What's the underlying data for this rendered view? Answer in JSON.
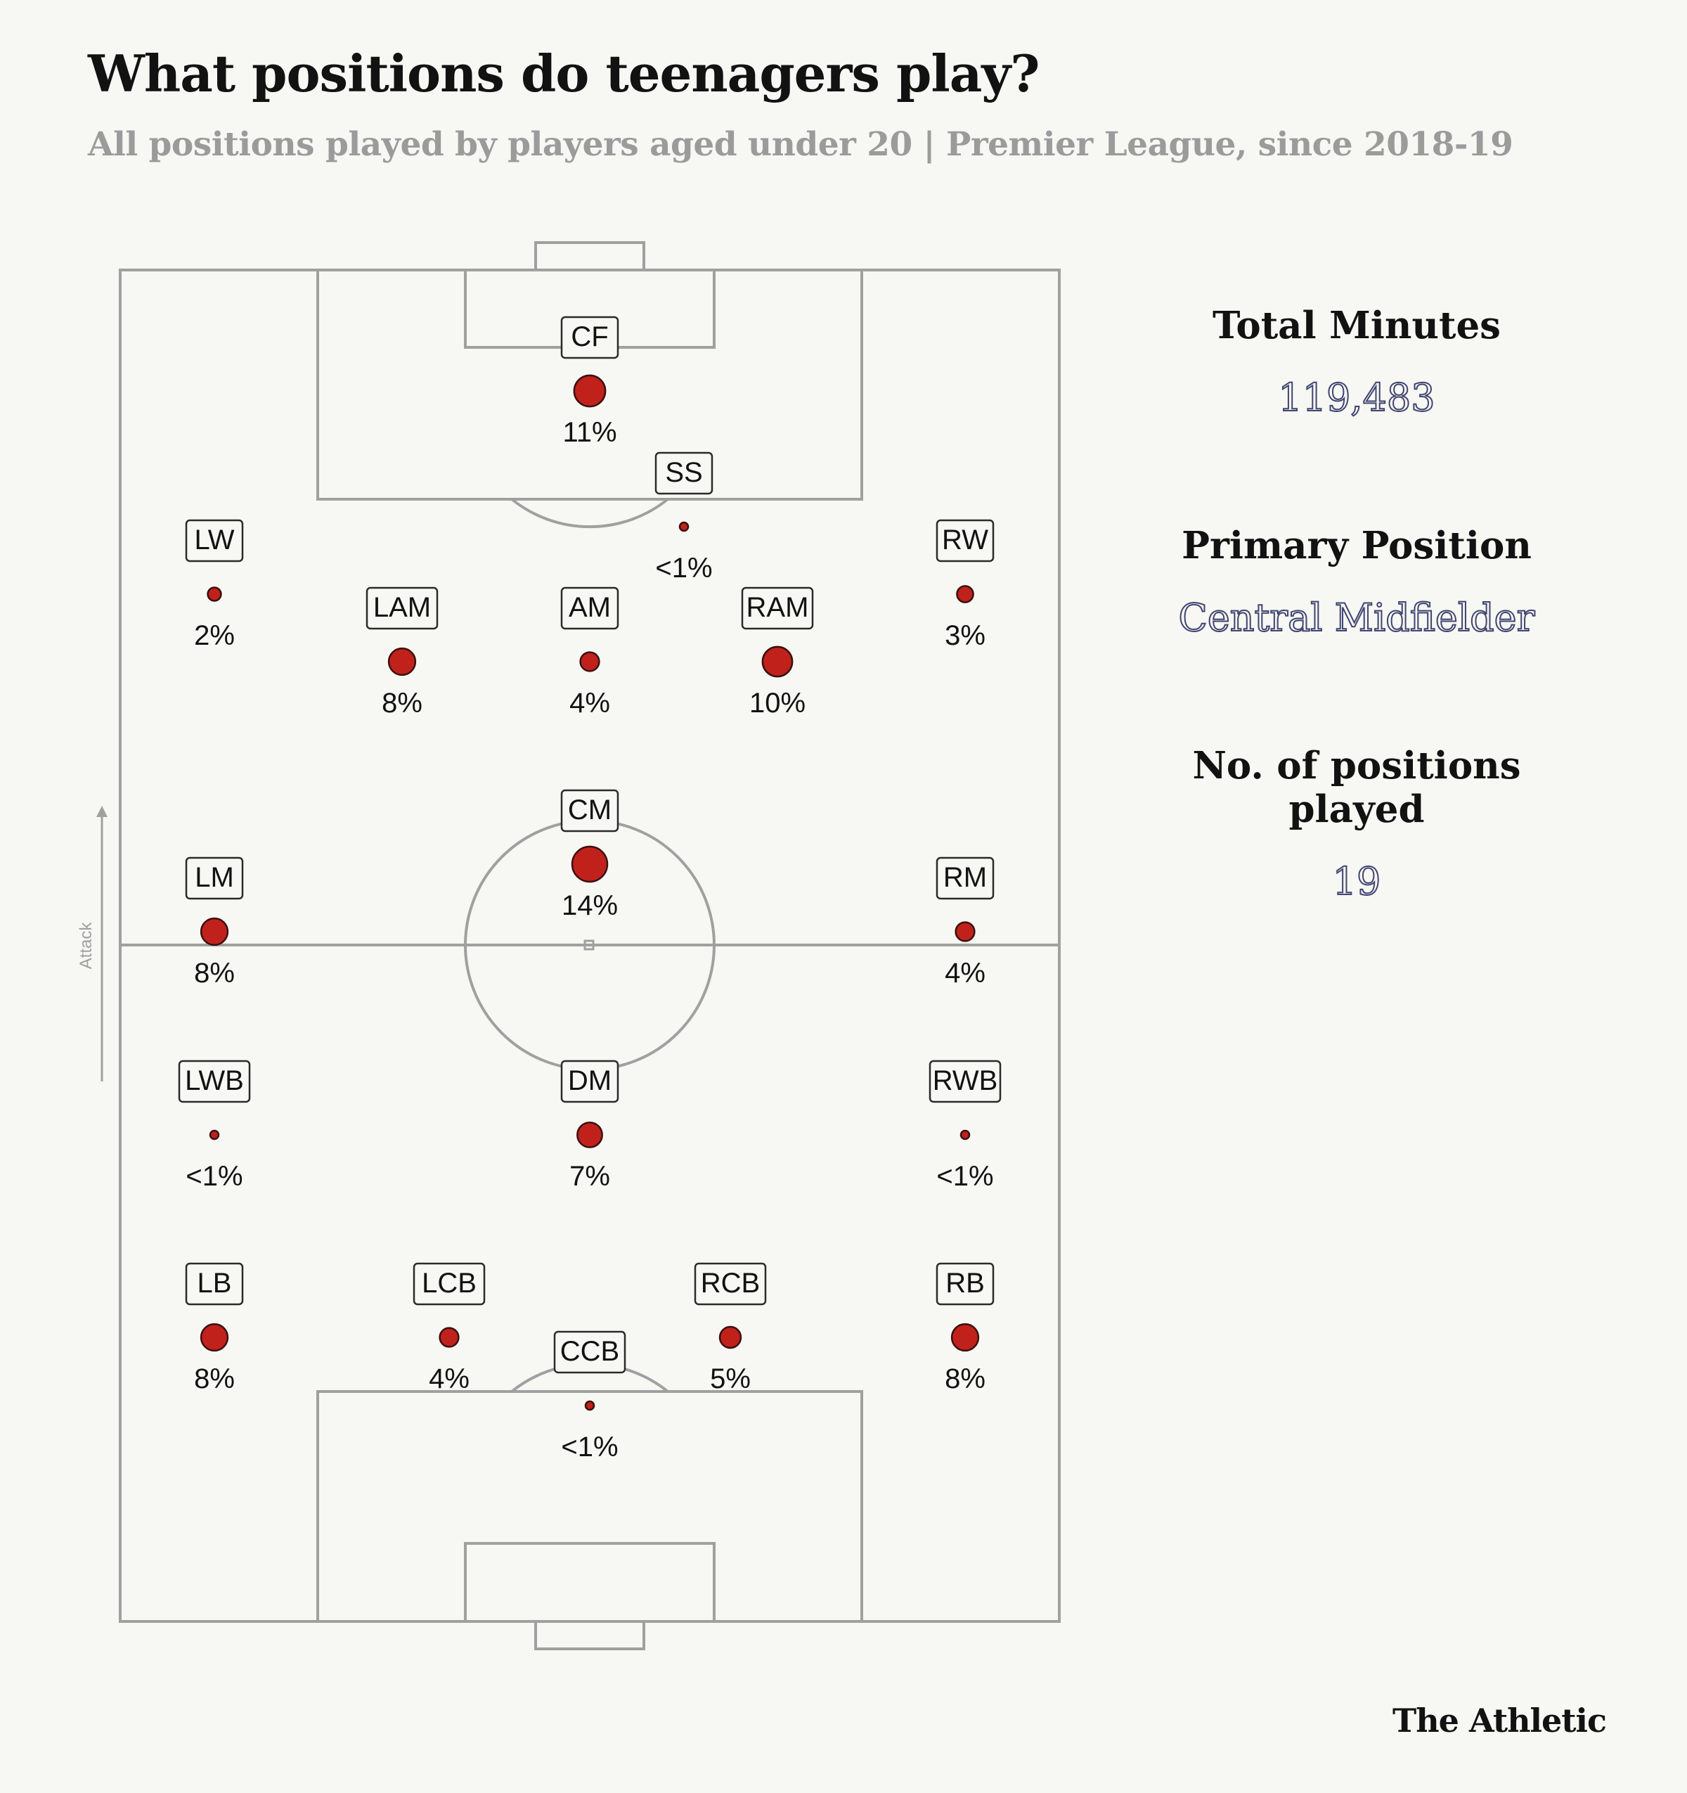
{
  "title": "What positions do teenagers play?",
  "subtitle": "All positions played by players aged under 20 | Premier League, since 2018-19",
  "brand": "The Athletic",
  "stats": {
    "total_minutes_label": "Total Minutes",
    "total_minutes_value": "119,483",
    "primary_position_label": "Primary Position",
    "primary_position_value": "Central Midfielder",
    "positions_played_label": "No. of positions played",
    "positions_played_value": "19"
  },
  "attack_label": "Attack",
  "colors": {
    "dot": "#c0221b",
    "dot_stroke": "#3a1010",
    "pitch_line": "#a0a0a0",
    "background": "#f7f7f3"
  },
  "chart_data": {
    "type": "scatter",
    "title": "What positions do teenagers play?",
    "subtitle": "All positions played by players aged under 20 | Premier League, since 2018-19",
    "points": [
      {
        "position": "CF",
        "label": "11%",
        "value": 11
      },
      {
        "position": "SS",
        "label": "<1%",
        "value": 0.5
      },
      {
        "position": "LW",
        "label": "2%",
        "value": 2
      },
      {
        "position": "RW",
        "label": "3%",
        "value": 3
      },
      {
        "position": "LAM",
        "label": "8%",
        "value": 8
      },
      {
        "position": "AM",
        "label": "4%",
        "value": 4
      },
      {
        "position": "RAM",
        "label": "10%",
        "value": 10
      },
      {
        "position": "CM",
        "label": "14%",
        "value": 14
      },
      {
        "position": "LM",
        "label": "8%",
        "value": 8
      },
      {
        "position": "RM",
        "label": "4%",
        "value": 4
      },
      {
        "position": "LWB",
        "label": "<1%",
        "value": 0.5
      },
      {
        "position": "DM",
        "label": "7%",
        "value": 7
      },
      {
        "position": "RWB",
        "label": "<1%",
        "value": 0.5
      },
      {
        "position": "LB",
        "label": "8%",
        "value": 8
      },
      {
        "position": "LCB",
        "label": "4%",
        "value": 4
      },
      {
        "position": "RCB",
        "label": "5%",
        "value": 5
      },
      {
        "position": "RB",
        "label": "8%",
        "value": 8
      },
      {
        "position": "CCB",
        "label": "<1%",
        "value": 0.5
      }
    ]
  }
}
